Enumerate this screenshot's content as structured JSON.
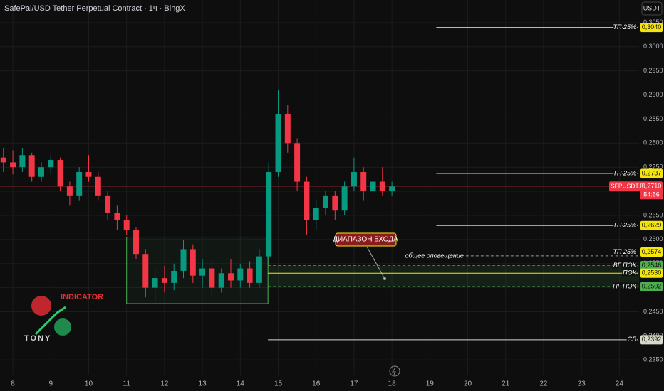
{
  "chart_data": {
    "type": "candlestick",
    "title": "SafePal/USD Tether Perpetual Contract · 1ч · BingX",
    "currency": "USDT",
    "up_color": "#089981",
    "down_color": "#f23645",
    "xlim": [
      7.66,
      24.52
    ],
    "ylim": [
      0.2318,
      0.3097
    ],
    "xticks": [
      8,
      9,
      10,
      11,
      12,
      13,
      14,
      15,
      16,
      17,
      18,
      19,
      20,
      21,
      22,
      23,
      24
    ],
    "yticks": [
      {
        "value": 0.305,
        "label": "0,3050"
      },
      {
        "value": 0.3,
        "label": "0,3000"
      },
      {
        "value": 0.295,
        "label": "0,2950"
      },
      {
        "value": 0.29,
        "label": "0,2900"
      },
      {
        "value": 0.285,
        "label": "0,2850"
      },
      {
        "value": 0.28,
        "label": "0,2800"
      },
      {
        "value": 0.275,
        "label": "0,2750"
      },
      {
        "value": 0.27,
        "label": "0,2700"
      },
      {
        "value": 0.265,
        "label": "0,2650"
      },
      {
        "value": 0.26,
        "label": "0,2600"
      },
      {
        "value": 0.255,
        "label": "0,2550"
      },
      {
        "value": 0.25,
        "label": "0,2500"
      },
      {
        "value": 0.245,
        "label": "0,2450"
      },
      {
        "value": 0.24,
        "label": "0,2400"
      },
      {
        "value": 0.235,
        "label": "0,2350"
      }
    ],
    "grid": true,
    "x": [
      7.75,
      8,
      8.25,
      8.5,
      8.75,
      9,
      9.25,
      9.5,
      9.75,
      10,
      10.25,
      10.5,
      10.75,
      11,
      11.25,
      11.5,
      11.75,
      12,
      12.25,
      12.5,
      12.75,
      13,
      13.25,
      13.5,
      13.75,
      14,
      14.25,
      14.5,
      14.75,
      15,
      15.25,
      15.5,
      15.75,
      16,
      16.25,
      16.5,
      16.75,
      17,
      17.25,
      17.5,
      17.75,
      18
    ],
    "ohlc": [
      [
        0.277,
        0.279,
        0.274,
        0.276
      ],
      [
        0.276,
        0.2785,
        0.2735,
        0.275
      ],
      [
        0.275,
        0.279,
        0.274,
        0.2775
      ],
      [
        0.2775,
        0.278,
        0.272,
        0.273
      ],
      [
        0.273,
        0.276,
        0.272,
        0.275
      ],
      [
        0.275,
        0.2775,
        0.2735,
        0.2765
      ],
      [
        0.2765,
        0.277,
        0.27,
        0.271
      ],
      [
        0.271,
        0.272,
        0.267,
        0.269
      ],
      [
        0.269,
        0.275,
        0.268,
        0.274
      ],
      [
        0.274,
        0.2775,
        0.272,
        0.273
      ],
      [
        0.273,
        0.274,
        0.268,
        0.269
      ],
      [
        0.269,
        0.27,
        0.264,
        0.2655
      ],
      [
        0.2655,
        0.267,
        0.262,
        0.264
      ],
      [
        0.264,
        0.265,
        0.261,
        0.262
      ],
      [
        0.262,
        0.2625,
        0.256,
        0.257
      ],
      [
        0.257,
        0.258,
        0.248,
        0.25
      ],
      [
        0.25,
        0.254,
        0.247,
        0.252
      ],
      [
        0.252,
        0.2545,
        0.249,
        0.251
      ],
      [
        0.251,
        0.255,
        0.2495,
        0.2535
      ],
      [
        0.2535,
        0.26,
        0.252,
        0.258
      ],
      [
        0.258,
        0.259,
        0.251,
        0.2525
      ],
      [
        0.2525,
        0.256,
        0.25,
        0.254
      ],
      [
        0.254,
        0.2555,
        0.248,
        0.25
      ],
      [
        0.25,
        0.254,
        0.249,
        0.253
      ],
      [
        0.253,
        0.256,
        0.25,
        0.2515
      ],
      [
        0.2515,
        0.255,
        0.25,
        0.254
      ],
      [
        0.254,
        0.2555,
        0.25,
        0.251
      ],
      [
        0.251,
        0.258,
        0.25,
        0.2565
      ],
      [
        0.2565,
        0.276,
        0.255,
        0.274
      ],
      [
        0.274,
        0.291,
        0.273,
        0.286
      ],
      [
        0.286,
        0.288,
        0.278,
        0.28
      ],
      [
        0.28,
        0.281,
        0.27,
        0.272
      ],
      [
        0.272,
        0.273,
        0.261,
        0.264
      ],
      [
        0.264,
        0.268,
        0.262,
        0.2665
      ],
      [
        0.2665,
        0.27,
        0.265,
        0.269
      ],
      [
        0.269,
        0.27,
        0.264,
        0.266
      ],
      [
        0.266,
        0.272,
        0.265,
        0.271
      ],
      [
        0.271,
        0.277,
        0.27,
        0.274
      ],
      [
        0.274,
        0.275,
        0.268,
        0.27
      ],
      [
        0.27,
        0.274,
        0.266,
        0.272
      ],
      [
        0.272,
        0.275,
        0.269,
        0.27
      ],
      [
        0.27,
        0.272,
        0.269,
        0.271
      ]
    ],
    "last_price": {
      "symbol": "SFPUSDT.P",
      "value": 0.271,
      "label": "0,2710",
      "countdown": "54:56",
      "color": "#f23645"
    },
    "range_box": {
      "x": [
        11.0,
        14.73
      ],
      "y": [
        0.2467,
        0.2605
      ],
      "color": "#4caf50"
    },
    "entry_zone": {
      "label": "ДИАПАЗОН ВХОДА",
      "x": [
        14.73,
        24.52
      ],
      "y": [
        0.2502,
        0.2546
      ]
    },
    "levels": [
      {
        "name": "ТП 25%",
        "value": 0.304,
        "label": "0,3040",
        "from": 19.17,
        "color": "#f5e50a",
        "dashed": false
      },
      {
        "name": "ТП 25%",
        "value": 0.2737,
        "label": "0,2737",
        "from": 19.17,
        "color": "#f5e50a",
        "dashed": false
      },
      {
        "name": "ТП 25%",
        "value": 0.2629,
        "label": "0,2629",
        "from": 19.17,
        "color": "#f5e50a",
        "dashed": false
      },
      {
        "name": "ТП 25%",
        "value": 0.2574,
        "label": "0,2574",
        "from": 19.17,
        "color": "#f5e50a",
        "dashed": false
      },
      {
        "name": "общее оповещение",
        "value": 0.2566,
        "from": 19.95,
        "color": "#d1d4dc",
        "dashed": true
      },
      {
        "name": "ВГ ПОК",
        "value": 0.2546,
        "label": "0,2546",
        "from": 14.73,
        "color": "#4caf50",
        "dashed": true
      },
      {
        "name": "ПОК",
        "value": 0.253,
        "label": "0,2530",
        "from": 14.73,
        "color": "#f5e50a",
        "dashed": false
      },
      {
        "name": "НГ ПОК",
        "value": 0.2502,
        "label": "0,2502",
        "from": 14.73,
        "color": "#4caf50",
        "dashed": true
      },
      {
        "name": "СЛ",
        "value": 0.2392,
        "label": "0,2392",
        "from": 14.73,
        "color": "#d9d9c8",
        "dashed": false
      }
    ],
    "logo": {
      "top": "INDICATOR",
      "bottom": "TONY"
    }
  }
}
